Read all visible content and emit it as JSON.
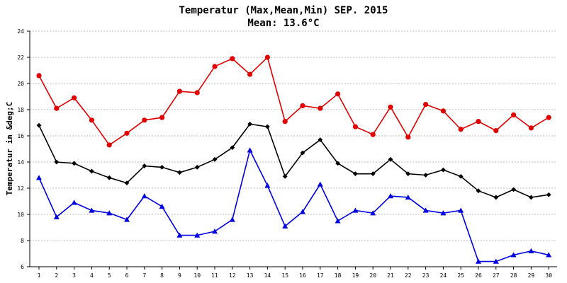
{
  "chart_data": {
    "type": "line",
    "title": "Temperatur (Max,Mean,Min) SEP. 2015",
    "subtitle": "Mean: 13.6°C",
    "xlabel": "",
    "ylabel": "Temperatur in &deg;C",
    "ylim": [
      6,
      24
    ],
    "yticks": [
      6,
      8,
      10,
      12,
      14,
      16,
      18,
      20,
      22,
      24
    ],
    "grid": true,
    "legend": "none",
    "x": [
      1,
      2,
      3,
      4,
      5,
      6,
      7,
      8,
      9,
      10,
      11,
      12,
      13,
      14,
      15,
      16,
      17,
      18,
      19,
      20,
      21,
      22,
      23,
      24,
      25,
      26,
      27,
      28,
      29,
      30
    ],
    "series": [
      {
        "color": "#e00000",
        "marker": "circle",
        "values": [
          20.6,
          18.1,
          18.9,
          17.2,
          15.3,
          16.2,
          17.2,
          17.4,
          19.4,
          19.3,
          21.3,
          21.9,
          20.7,
          22.0,
          17.1,
          18.3,
          18.1,
          19.2,
          16.7,
          16.1,
          18.2,
          15.9,
          18.4,
          17.9,
          16.5,
          17.1,
          16.4,
          17.6,
          16.6,
          17.4
        ]
      },
      {
        "color": "#000000",
        "marker": "diamond",
        "values": [
          16.8,
          14.0,
          13.9,
          13.3,
          12.8,
          12.4,
          13.7,
          13.6,
          13.2,
          13.6,
          14.2,
          15.1,
          16.9,
          16.7,
          12.9,
          14.7,
          15.7,
          13.9,
          13.1,
          13.1,
          14.2,
          13.1,
          13.0,
          13.4,
          12.9,
          11.8,
          11.3,
          11.9,
          11.3,
          11.5
        ]
      },
      {
        "color": "#0000e0",
        "marker": "triangle",
        "values": [
          12.8,
          9.8,
          10.9,
          10.3,
          10.1,
          9.6,
          11.4,
          10.6,
          8.4,
          8.4,
          8.7,
          9.6,
          14.9,
          12.2,
          9.1,
          10.2,
          12.3,
          9.5,
          10.3,
          10.1,
          11.4,
          11.3,
          10.3,
          10.1,
          10.3,
          6.4,
          6.4,
          6.9,
          7.2,
          6.9
        ]
      }
    ]
  }
}
